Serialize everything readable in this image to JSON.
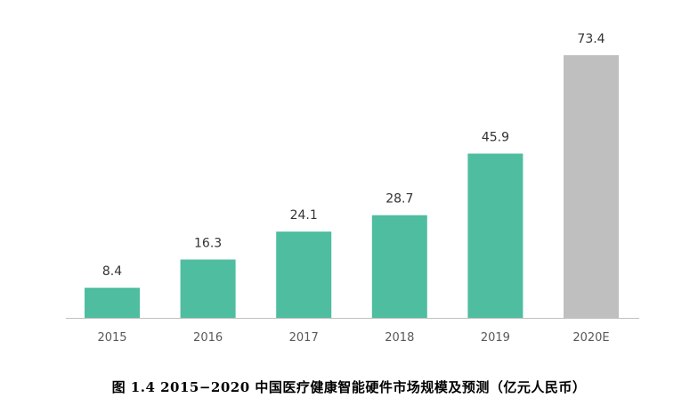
{
  "caption": "图 1.4 2015−2020 中国医疗健康智能硬件市场规模及预测（亿元人民币）",
  "colors": {
    "actual_bar": "#4fbda0",
    "forecast_bar": "#bfbfbf",
    "axis": "#bfbfbf"
  },
  "chart_data": {
    "type": "bar",
    "title": "",
    "xlabel": "",
    "ylabel": "",
    "categories": [
      "2015",
      "2016",
      "2017",
      "2018",
      "2019",
      "2020E"
    ],
    "values": [
      8.4,
      16.3,
      24.1,
      28.7,
      45.9,
      73.4
    ],
    "value_labels": [
      "8.4",
      "16.3",
      "24.1",
      "28.7",
      "45.9",
      "73.4"
    ],
    "forecast": [
      false,
      false,
      false,
      false,
      false,
      true
    ],
    "ylim": [
      0,
      73.4
    ],
    "grid": false,
    "legend": "none"
  }
}
